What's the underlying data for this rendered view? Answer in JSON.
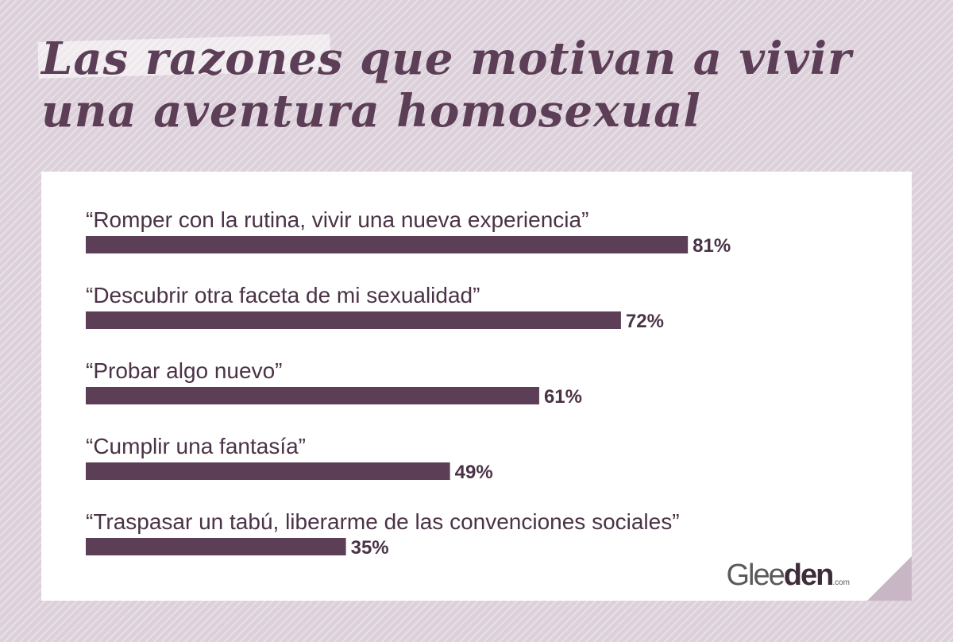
{
  "header": {
    "title_line1": "Las razones que motivan a vivir",
    "title_line2": "una aventura homosexual"
  },
  "colors": {
    "bar": "#5d3e57",
    "text": "#4a3346",
    "background": "#dcd0da",
    "card": "#ffffff",
    "fold": "#c9b6c5"
  },
  "logo": {
    "prefix": "Glee",
    "main": "den",
    "suffix": ".com"
  },
  "chart_data": {
    "type": "bar",
    "orientation": "horizontal",
    "categories": [
      "“Romper con la rutina, vivir una nueva experiencia”",
      "“Descubrir otra faceta de mi sexualidad”",
      "“Probar algo nuevo”",
      "“Cumplir una fantasía”",
      "“Traspasar un tabú, liberarme de las convenciones sociales”"
    ],
    "values": [
      81,
      72,
      61,
      49,
      35
    ],
    "value_labels": [
      "81%",
      "72%",
      "61%",
      "49%",
      "35%"
    ],
    "unit": "%",
    "xlim": [
      0,
      100
    ],
    "grid": false,
    "legend": "none"
  }
}
